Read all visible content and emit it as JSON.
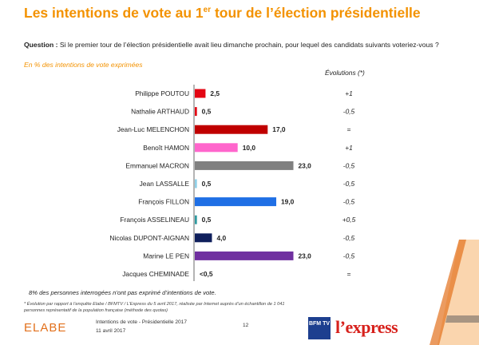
{
  "header": {
    "title_part1": "Les intentions de vote au 1",
    "title_sup": "er",
    "title_part2": " tour de l’élection présidentielle"
  },
  "question": {
    "label": "Question :",
    "text": " Si le premier tour de l’élection présidentielle avait lieu dimanche prochain, pour lequel des candidats suivants voteriez-vous ?"
  },
  "subtitle": "En %  des intentions de vote exprimées",
  "evolutions_header": "Évolutions (*)",
  "chart_data": {
    "type": "bar",
    "orientation": "horizontal",
    "title": "Les intentions de vote au 1er tour de l’élection présidentielle",
    "unit": "%",
    "xlim": [
      0,
      25
    ],
    "categories": [
      "Philippe POUTOU",
      "Nathalie ARTHAUD",
      "Jean-Luc MELENCHON",
      "Benoît HAMON",
      "Emmanuel MACRON",
      "Jean LASSALLE",
      "François FILLON",
      "François ASSELINEAU",
      "Nicolas DUPONT-AIGNAN",
      "Marine LE PEN",
      "Jacques CHEMINADE"
    ],
    "values": [
      2.5,
      0.5,
      17.0,
      10.0,
      23.0,
      0.5,
      19.0,
      0.5,
      4.0,
      23.0,
      0
    ],
    "value_labels": [
      "2,5",
      "0,5",
      "17,0",
      "10,0",
      "23,0",
      "0,5",
      "19,0",
      "0,5",
      "4,0",
      "23,0",
      "<0,5"
    ],
    "colors": [
      "#e30613",
      "#e30613",
      "#c00000",
      "#ff66cc",
      "#808080",
      "#8fd0e8",
      "#1f6fe5",
      "#2e9aa0",
      "#0f1f5c",
      "#7030a0",
      "#ffffff"
    ],
    "evolutions": [
      "+1",
      "-0,5",
      "=",
      "+1",
      "-0,5",
      "-0,5",
      "-0,5",
      "+0,5",
      "-0,5",
      "-0,5",
      "="
    ]
  },
  "note": "8% des personnes interrogées n’ont pas exprimé d’intentions de vote.",
  "footnote": "* Évolution par rapport à l’enquête Elabe / BFMTV / L’Express du 5 avril 2017, réalisée par Internet auprès d’un échantillon de 1 041 personnes représentatif de la population française (méthode des quotas)",
  "footer": {
    "brand": "ELABE",
    "doc_title": "Intentions de vote - Présidentielle 2017",
    "date": "11 avril 2017",
    "page": "12",
    "partner_tv": "BFM TV",
    "partner_press": "l’express"
  },
  "colors": {
    "accent": "#f39200"
  }
}
